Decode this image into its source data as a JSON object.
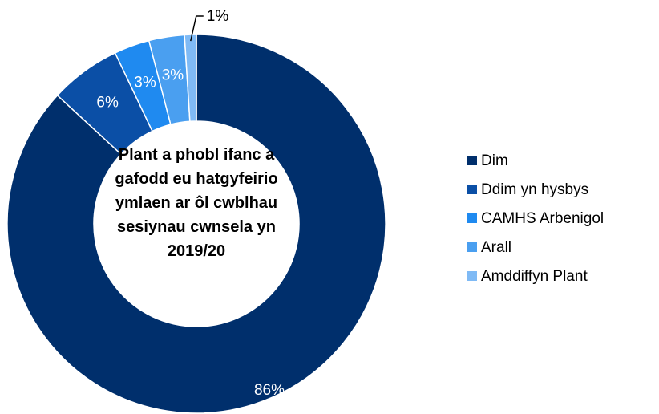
{
  "chart_data": {
    "type": "donut",
    "title": "Plant a phobl ifanc a gafodd eu hatgyfeirio ymlaen ar ôl cwblhau sesiynau cwnsela yn 2019/20",
    "categories": [
      "Dim",
      "Ddim yn hysbys",
      "CAMHS Arbenigol",
      "Arall",
      "Amddiffyn Plant"
    ],
    "values": [
      86,
      6,
      3,
      3,
      1
    ],
    "value_labels": [
      "86%",
      "6%",
      "3%",
      "3%",
      "1%"
    ],
    "colors": [
      "#002f6c",
      "#0b4fa6",
      "#1f8af0",
      "#4a9ff0",
      "#7fbaf5"
    ],
    "legend": "right"
  }
}
